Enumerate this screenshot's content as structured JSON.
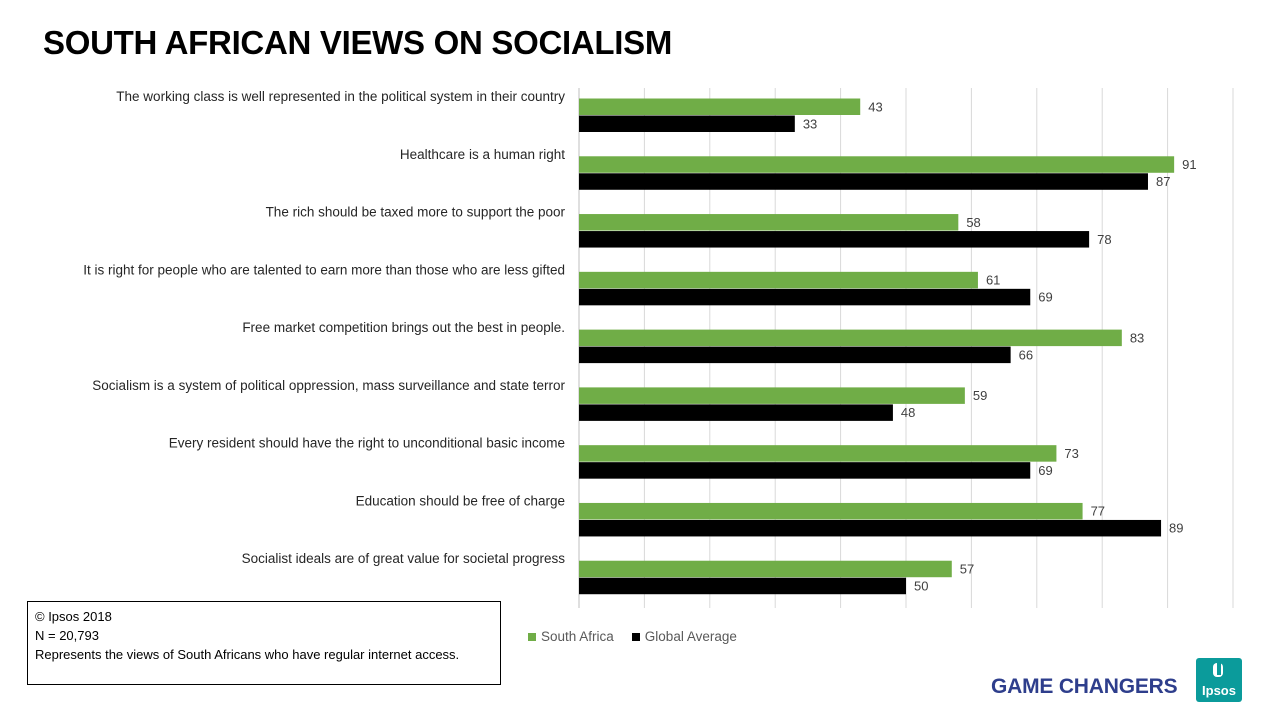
{
  "title": "SOUTH AFRICAN VIEWS ON SOCIALISM",
  "colors": {
    "south_africa": "#70AD47",
    "global_average": "#000000",
    "gridline": "#D9D9D9",
    "brand_blue": "#2E3E8C",
    "logo_teal": "#0B9B9B"
  },
  "chart_data": {
    "type": "bar",
    "orientation": "horizontal",
    "categories": [
      "The working class is well represented in the political system in their country",
      "Healthcare is a human right",
      "The rich should be taxed more to support the poor",
      "It is right for people who are talented to earn more than those who are less gifted",
      "Free market competition brings out the best in people.",
      "Socialism is a system of political oppression, mass surveillance and state terror",
      "Every resident should have the right to unconditional basic income",
      "Education should be free of charge",
      "Socialist ideals are of great value for societal progress"
    ],
    "series": [
      {
        "name": "South Africa",
        "values": [
          43,
          91,
          58,
          61,
          83,
          59,
          73,
          77,
          57
        ]
      },
      {
        "name": "Global  Average",
        "values": [
          33,
          87,
          78,
          69,
          66,
          48,
          69,
          89,
          50
        ]
      }
    ],
    "xlim": [
      0,
      100
    ],
    "grid": true,
    "legend_position": "bottom"
  },
  "note": {
    "line1": "© Ipsos 2018",
    "line2": "N = 20,793",
    "line3": "Represents the views of South  Africans who have regular internet access."
  },
  "footer": {
    "tagline": "GAME CHANGERS",
    "logo_text": "Ipsos"
  }
}
